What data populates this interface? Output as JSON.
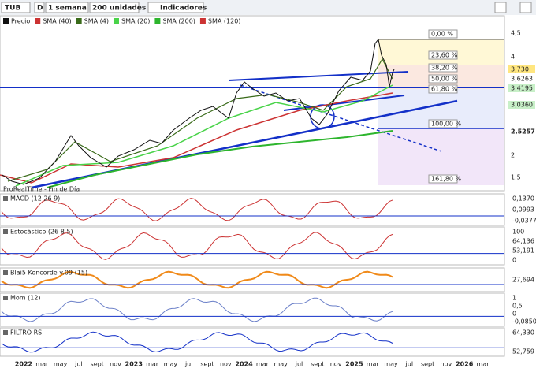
{
  "toolbar": {
    "symbol": "TUB",
    "mode": "D",
    "period": "1 semana",
    "units": "200 unidades",
    "indicators": "Indicadores"
  },
  "legend": [
    "Precio",
    "SMA (40)",
    "SMA (4)",
    "SMA (20)",
    "SMA (200)",
    "SMA (120)"
  ],
  "fibonacci": [
    "0,00 %",
    "23,60 %",
    "38,20 %",
    "50,00 %",
    "61,80 %",
    "100,00 %",
    "161,80 %"
  ],
  "price_axis": [
    "4,5",
    "4",
    "3,730",
    "3,6263",
    "3,4195",
    "3,0360",
    "2,5257",
    "2",
    "1,5"
  ],
  "source": "ProRealTime - Fin de Día",
  "panels": [
    {
      "title": "MACD (12 26 9)",
      "axis": [
        "0,1370",
        "0,0993",
        "-0,0377"
      ]
    },
    {
      "title": "Estocástico (26 8 5)",
      "axis": [
        "100",
        "64,136",
        "53,191",
        "0"
      ]
    },
    {
      "title": "Blai5 Koncorde v.09 (15)",
      "axis": [
        "27,694"
      ]
    },
    {
      "title": "Mom (12)",
      "axis": [
        "1",
        "0,5",
        "0",
        "-0,0850"
      ]
    },
    {
      "title": "FILTRO RSI",
      "axis": [
        "64,330",
        "52,759"
      ]
    }
  ],
  "x_axis": [
    "2022",
    "mar",
    "may",
    "jul",
    "sept",
    "nov",
    "2023",
    "mar",
    "may",
    "jul",
    "sept",
    "nov",
    "2024",
    "mar",
    "may",
    "jul",
    "sept",
    "nov",
    "2025",
    "mar",
    "may",
    "jul",
    "sept",
    "nov",
    "2026",
    "mar"
  ]
}
